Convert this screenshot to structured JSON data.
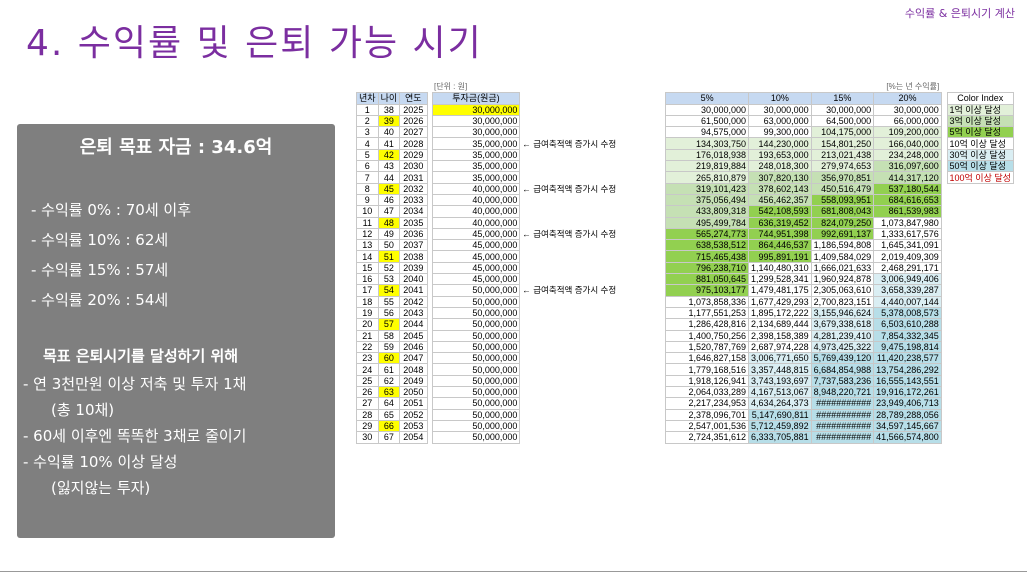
{
  "header": {
    "tag": "수익률 & 은퇴시기 계산",
    "title": "4. 수익률 및 은퇴 가능 시기"
  },
  "panel": {
    "goal": "은퇴 목표 자금 : 34.6억",
    "lines": [
      "- 수익률   0% : 70세 이후",
      "- 수익률 10% : 62세",
      "- 수익률 15% : 57세",
      "- 수익률 20% : 54세"
    ],
    "plan_title": "목표 은퇴시기를 달성하기 위해",
    "plan": [
      "- 연 3천만원 이상 저축 및 투자 1채",
      "(총 10채)",
      "- 60세 이후엔 똑똑한 3채로 줄이기",
      "- 수익률 10% 이상 달성",
      "(잃지않는 투자)"
    ]
  },
  "sheet": {
    "unit_label": "[단위 : 원]",
    "rate_label": "[%는 년 수익률]",
    "headers": {
      "n": "년차",
      "age": "나이",
      "year": "연도",
      "invest": "투자금(원금)",
      "r5": "5%",
      "r10": "10%",
      "r15": "15%",
      "r20": "20%",
      "color_index": "Color Index"
    },
    "color_index": [
      {
        "label": "1억 이상 달성",
        "color": "#e2f0d9"
      },
      {
        "label": "3억 이상 달성",
        "color": "#c5e0b4"
      },
      {
        "label": "5억 이상 달성",
        "color": "#92d050"
      },
      {
        "label": "10억 이상 달성",
        "color": "#ffffff"
      },
      {
        "label": "30억 이상 달성",
        "color": "#daeef3"
      },
      {
        "label": "50억 이상 달성",
        "color": "#b7dee8"
      },
      {
        "label": "100억 이상 달성",
        "color": "#ffffff"
      }
    ],
    "rows": [
      [
        "1",
        "38",
        "2025",
        "30,000,000",
        "",
        "30,000,000",
        "30,000,000",
        "30,000,000",
        "30,000,000"
      ],
      [
        "2",
        "39",
        "2026",
        "30,000,000",
        "",
        "61,500,000",
        "63,000,000",
        "64,500,000",
        "66,000,000"
      ],
      [
        "3",
        "40",
        "2027",
        "30,000,000",
        "",
        "94,575,000",
        "99,300,000",
        "104,175,000",
        "109,200,000"
      ],
      [
        "4",
        "41",
        "2028",
        "35,000,000",
        "← 급여축적액 증가시 수정",
        "134,303,750",
        "144,230,000",
        "154,801,250",
        "166,040,000"
      ],
      [
        "5",
        "42",
        "2029",
        "35,000,000",
        "",
        "176,018,938",
        "193,653,000",
        "213,021,438",
        "234,248,000"
      ],
      [
        "6",
        "43",
        "2030",
        "35,000,000",
        "",
        "219,819,884",
        "248,018,300",
        "279,974,653",
        "316,097,600"
      ],
      [
        "7",
        "44",
        "2031",
        "35,000,000",
        "",
        "265,810,879",
        "307,820,130",
        "356,970,851",
        "414,317,120"
      ],
      [
        "8",
        "45",
        "2032",
        "40,000,000",
        "← 급여축적액 증가시 수정",
        "319,101,423",
        "378,602,143",
        "450,516,479",
        "537,180,544"
      ],
      [
        "9",
        "46",
        "2033",
        "40,000,000",
        "",
        "375,056,494",
        "456,462,357",
        "558,093,951",
        "684,616,653"
      ],
      [
        "10",
        "47",
        "2034",
        "40,000,000",
        "",
        "433,809,318",
        "542,108,593",
        "681,808,043",
        "861,539,983"
      ],
      [
        "11",
        "48",
        "2035",
        "40,000,000",
        "",
        "495,499,784",
        "636,319,452",
        "824,079,250",
        "1,073,847,980"
      ],
      [
        "12",
        "49",
        "2036",
        "45,000,000",
        "← 급여축적액 증가시 수정",
        "565,274,773",
        "744,951,398",
        "992,691,137",
        "1,333,617,576"
      ],
      [
        "13",
        "50",
        "2037",
        "45,000,000",
        "",
        "638,538,512",
        "864,446,537",
        "1,186,594,808",
        "1,645,341,091"
      ],
      [
        "14",
        "51",
        "2038",
        "45,000,000",
        "",
        "715,465,438",
        "995,891,191",
        "1,409,584,029",
        "2,019,409,309"
      ],
      [
        "15",
        "52",
        "2039",
        "45,000,000",
        "",
        "796,238,710",
        "1,140,480,310",
        "1,666,021,633",
        "2,468,291,171"
      ],
      [
        "16",
        "53",
        "2040",
        "45,000,000",
        "",
        "881,050,645",
        "1,299,528,341",
        "1,960,924,878",
        "3,006,949,406"
      ],
      [
        "17",
        "54",
        "2041",
        "50,000,000",
        "← 급여축적액 증가시 수정",
        "975,103,177",
        "1,479,481,175",
        "2,305,063,610",
        "3,658,339,287"
      ],
      [
        "18",
        "55",
        "2042",
        "50,000,000",
        "",
        "1,073,858,336",
        "1,677,429,293",
        "2,700,823,151",
        "4,440,007,144"
      ],
      [
        "19",
        "56",
        "2043",
        "50,000,000",
        "",
        "1,177,551,253",
        "1,895,172,222",
        "3,155,946,624",
        "5,378,008,573"
      ],
      [
        "20",
        "57",
        "2044",
        "50,000,000",
        "",
        "1,286,428,816",
        "2,134,689,444",
        "3,679,338,618",
        "6,503,610,288"
      ],
      [
        "21",
        "58",
        "2045",
        "50,000,000",
        "",
        "1,400,750,256",
        "2,398,158,389",
        "4,281,239,410",
        "7,854,332,345"
      ],
      [
        "22",
        "59",
        "2046",
        "50,000,000",
        "",
        "1,520,787,769",
        "2,687,974,228",
        "4,973,425,322",
        "9,475,198,814"
      ],
      [
        "23",
        "60",
        "2047",
        "50,000,000",
        "",
        "1,646,827,158",
        "3,006,771,650",
        "5,769,439,120",
        "11,420,238,577"
      ],
      [
        "24",
        "61",
        "2048",
        "50,000,000",
        "",
        "1,779,168,516",
        "3,357,448,815",
        "6,684,854,988",
        "13,754,286,292"
      ],
      [
        "25",
        "62",
        "2049",
        "50,000,000",
        "",
        "1,918,126,941",
        "3,743,193,697",
        "7,737,583,236",
        "16,555,143,551"
      ],
      [
        "26",
        "63",
        "2050",
        "50,000,000",
        "",
        "2,064,033,289",
        "4,167,513,067",
        "8,948,220,721",
        "19,916,172,261"
      ],
      [
        "27",
        "64",
        "2051",
        "50,000,000",
        "",
        "2,217,234,953",
        "4,634,264,373",
        "###########",
        "23,949,406,713"
      ],
      [
        "28",
        "65",
        "2052",
        "50,000,000",
        "",
        "2,378,096,701",
        "5,147,690,811",
        "###########",
        "28,789,288,056"
      ],
      [
        "29",
        "66",
        "2053",
        "50,000,000",
        "",
        "2,547,001,536",
        "5,712,459,892",
        "###########",
        "34,597,145,667"
      ],
      [
        "30",
        "67",
        "2054",
        "50,000,000",
        "",
        "2,724,351,612",
        "6,333,705,881",
        "###########",
        "41,566,574,800"
      ]
    ],
    "highlight_rows": [
      1,
      4,
      7,
      10,
      13,
      16,
      19,
      22,
      25,
      28
    ],
    "fills": {
      "blue_light": "#daeef3",
      "blue_mid": "#b7dee8",
      "green_light": "#e2f0d9",
      "green_mid": "#c5e0b4",
      "green_strong": "#92d050",
      "yellow": "#ffff00"
    }
  }
}
